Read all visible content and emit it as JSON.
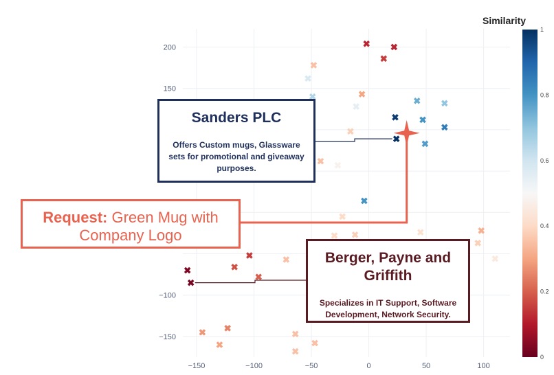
{
  "chart_data": {
    "type": "scatter",
    "title": "",
    "xlabel": "",
    "ylabel": "",
    "xlim": [
      -162,
      123
    ],
    "ylim": [
      -175,
      222
    ],
    "x_ticks": [
      -150,
      -100,
      -50,
      0,
      50,
      100
    ],
    "y_ticks": [
      -150,
      -100,
      150,
      200
    ],
    "grid": true,
    "colorbar": {
      "title": "Similarity",
      "ticks": [
        "0",
        "0.2",
        "0.4",
        "0.6",
        "0.8",
        "1"
      ],
      "range": [
        0,
        1
      ],
      "colors": [
        "#67001f",
        "#b2182b",
        "#d6604d",
        "#f4a582",
        "#fddbc7",
        "#f7f7f7",
        "#d1e5f0",
        "#92c5de",
        "#4393c3",
        "#2166ac",
        "#053061"
      ]
    },
    "points": [
      {
        "x": -2,
        "y": 204,
        "s": 0.12
      },
      {
        "x": 22,
        "y": 200,
        "s": 0.12
      },
      {
        "x": 13,
        "y": 186,
        "s": 0.15
      },
      {
        "x": -48,
        "y": 178,
        "s": 0.35
      },
      {
        "x": -53,
        "y": 162,
        "s": 0.58
      },
      {
        "x": -49,
        "y": 140,
        "s": 0.65
      },
      {
        "x": -6,
        "y": 143,
        "s": 0.3
      },
      {
        "x": -11,
        "y": 128,
        "s": 0.55
      },
      {
        "x": 42,
        "y": 135,
        "s": 0.75
      },
      {
        "x": 66,
        "y": 132,
        "s": 0.7
      },
      {
        "x": 23,
        "y": 115,
        "s": 0.98
      },
      {
        "x": 47,
        "y": 112,
        "s": 0.8
      },
      {
        "x": 66,
        "y": 103,
        "s": 0.85
      },
      {
        "x": -16,
        "y": 98,
        "s": 0.38
      },
      {
        "x": 24,
        "y": 89,
        "s": 1.0
      },
      {
        "x": 49,
        "y": 83,
        "s": 0.78
      },
      {
        "x": -42,
        "y": 62,
        "s": 0.35
      },
      {
        "x": -27,
        "y": 57,
        "s": 0.48
      },
      {
        "x": -4,
        "y": 14,
        "s": 0.8
      },
      {
        "x": -23,
        "y": -5,
        "s": 0.4
      },
      {
        "x": -30,
        "y": -28,
        "s": 0.4
      },
      {
        "x": -12,
        "y": -27,
        "s": 0.38
      },
      {
        "x": 45,
        "y": -24,
        "s": 0.42
      },
      {
        "x": 98,
        "y": -22,
        "s": 0.32
      },
      {
        "x": 95,
        "y": -37,
        "s": 0.38
      },
      {
        "x": 110,
        "y": -56,
        "s": 0.45
      },
      {
        "x": -104,
        "y": -52,
        "s": 0.15
      },
      {
        "x": -72,
        "y": -57,
        "s": 0.35
      },
      {
        "x": -117,
        "y": -66,
        "s": 0.18
      },
      {
        "x": -96,
        "y": -78,
        "s": 0.2
      },
      {
        "x": -158,
        "y": -70,
        "s": 0.03
      },
      {
        "x": -155,
        "y": -85,
        "s": 0.02
      },
      {
        "x": -145,
        "y": -145,
        "s": 0.28
      },
      {
        "x": -123,
        "y": -140,
        "s": 0.25
      },
      {
        "x": -130,
        "y": -160,
        "s": 0.3
      },
      {
        "x": -64,
        "y": -147,
        "s": 0.35
      },
      {
        "x": -47,
        "y": -158,
        "s": 0.35
      },
      {
        "x": -64,
        "y": -168,
        "s": 0.35
      },
      {
        "x": 22,
        "y": -43,
        "s": 0.65
      }
    ],
    "request_point": {
      "x": 33,
      "y": 96
    },
    "annotations": [
      {
        "title": "Sanders PLC",
        "text": "Offers Custom mugs, Glassware sets for promotional and giveaway purposes."
      },
      {
        "title": "Berger, Payne and Griffith",
        "text": "Specializes in IT Support, Software Development, Network Security."
      }
    ],
    "request": {
      "label": "Request:",
      "text": "Green Mug with Company Logo"
    }
  }
}
